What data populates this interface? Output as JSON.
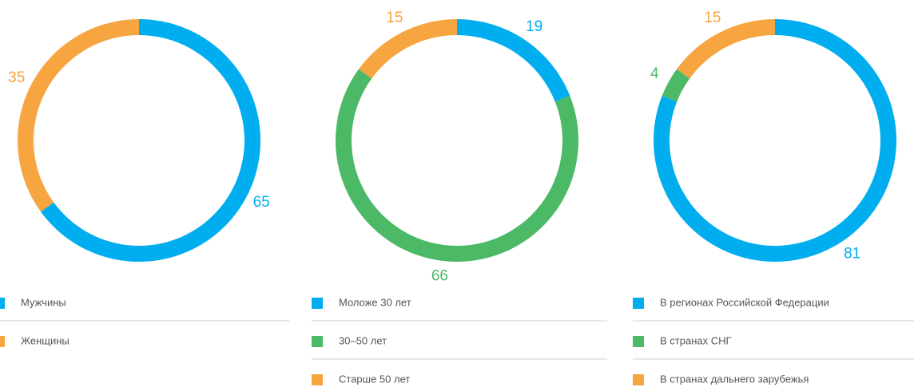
{
  "chart_data": [
    {
      "type": "pie",
      "categories": [
        "Мужчины",
        "Женщины"
      ],
      "values": [
        65,
        35
      ],
      "colors": [
        "#00aeef",
        "#f7a541"
      ]
    },
    {
      "type": "pie",
      "categories": [
        "Моложе 30 лет",
        "30–50 лет",
        "Старше 50 лет"
      ],
      "values": [
        19,
        66,
        15
      ],
      "colors": [
        "#00aeef",
        "#4cb966",
        "#f7a541"
      ]
    },
    {
      "type": "pie",
      "categories": [
        "В регионах Российской Федерации",
        "В странах СНГ",
        "В странах дальнего зарубежья"
      ],
      "values": [
        81,
        4,
        15
      ],
      "colors": [
        "#00aeef",
        "#4cb966",
        "#f7a541"
      ]
    }
  ]
}
